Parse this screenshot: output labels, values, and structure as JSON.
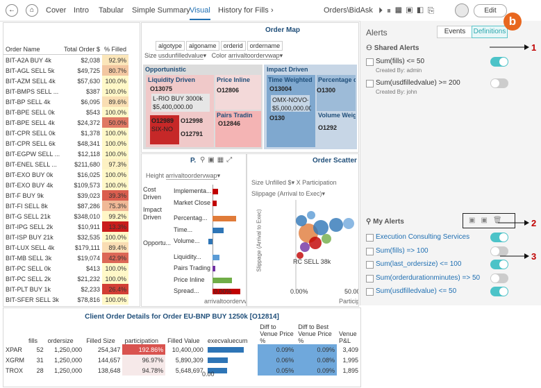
{
  "nav": {
    "tabs": [
      "Cover",
      "Intro",
      "Tabular",
      "Simple Summary",
      "Visual",
      "History for Fills"
    ],
    "active": 4,
    "path": "Orders\\BidAsk",
    "edit": "Edit",
    "badge": "b"
  },
  "order_table": {
    "headers": [
      "Order Name",
      "Total Order $",
      "% Filled"
    ],
    "rows": [
      [
        "BIT-A2A BUY 4k",
        "$2,038",
        "92.9%"
      ],
      [
        "BIT-AGL SELL 5k",
        "$49,725",
        "80.7%"
      ],
      [
        "BIT-AZM SELL 4k",
        "$57,630",
        "100.0%"
      ],
      [
        "BIT-BMPS SELL ...",
        "$387",
        "100.0%"
      ],
      [
        "BIT-BP SELL 4k",
        "$6,095",
        "89.6%"
      ],
      [
        "BIT-BPE SELL 0k",
        "$543",
        "100.0%"
      ],
      [
        "BIT-BPE SELL 4k",
        "$24,372",
        "50.0%"
      ],
      [
        "BIT-CPR SELL 0k",
        "$1,378",
        "100.0%"
      ],
      [
        "BIT-CPR SELL 6k",
        "$48,341",
        "100.0%"
      ],
      [
        "BIT-EGPW SELL ...",
        "$12,118",
        "100.0%"
      ],
      [
        "BIT-ENEL SELL ...",
        "$211,680",
        "97.3%"
      ],
      [
        "BIT-EXO BUY 0k",
        "$16,025",
        "100.0%"
      ],
      [
        "BIT-EXO BUY 4k",
        "$109,573",
        "100.0%"
      ],
      [
        "BIT-F BUY 9k",
        "$39,023",
        "39.3%"
      ],
      [
        "BIT-FI SELL 8k",
        "$87,286",
        "75.3%"
      ],
      [
        "BIT-G SELL 21k",
        "$348,010",
        "99.2%"
      ],
      [
        "BIT-IPG SELL 2k",
        "$10,911",
        "13.3%"
      ],
      [
        "BIT-ISP BUY 21k",
        "$32,535",
        "100.0%"
      ],
      [
        "BIT-LUX SELL 4k",
        "$179,111",
        "89.4%"
      ],
      [
        "BIT-MB SELL 3k",
        "$19,074",
        "42.9%"
      ],
      [
        "BIT-PC SELL 0k",
        "$413",
        "100.0%"
      ],
      [
        "BIT-PC SELL 2k",
        "$21,232",
        "100.0%"
      ],
      [
        "BIT-PLT BUY 1k",
        "$2,233",
        "26.4%"
      ],
      [
        "BIT-SFER SELL 3k",
        "$78,816",
        "100.0%"
      ]
    ]
  },
  "order_map": {
    "title": "Order Map",
    "chips": [
      "algotype",
      "algoname",
      "orderid",
      "ordername"
    ],
    "size_label": "Size",
    "size_field": "usdunfilledvalue",
    "color_label": "Color",
    "color_field": "arrivaltoordervwap",
    "labels": [
      "Opportunistic",
      "Liquidity Driven",
      "Price Inline",
      "Pairs Tradin",
      "Impact Driven",
      "Time Weighted",
      "Percentage o",
      "Volume Weig",
      "O13075",
      "L-RIO BUY 3000k",
      "$5,400,000.00",
      "O12806",
      "O12989",
      "O12998",
      "SIX-NO",
      "O12791",
      "O12846",
      "O13004",
      "OMX-NOVO-",
      "$5,000,000.00",
      "O1300",
      "O130",
      "O1292"
    ]
  },
  "bar_panel": {
    "title": "P.",
    "height_label": "Height",
    "height_field": "arrivaltoordervwap",
    "groups": [
      "Cost Driven",
      "Impact Driven",
      "Opportu..."
    ],
    "categories": [
      "Implementa...",
      "Market Close",
      "Percentag...",
      "Time...",
      "Volume...",
      "Liquidity...",
      "Pairs Trading",
      "Price Inline",
      "Spread..."
    ],
    "axis_tick": "0.00%",
    "axis_label": "arrivaltoordervw"
  },
  "scatter": {
    "title": "Order Scatter",
    "size_label": "Size",
    "size_field": "Unfilled $",
    "x_label": "X",
    "x_field": "Participation",
    "y_field": "Slippage (Arrival to Exec)",
    "y_title": "Slippage (Arrival to Exec)",
    "point_label": "RC SELL 38k",
    "xtick0": "0.00%",
    "xtick1": "50.00",
    "x_title": "Particip"
  },
  "alerts": {
    "title": "Alerts",
    "tabs": [
      "Events",
      "Definitions"
    ],
    "shared_title": "Shared Alerts",
    "shared": [
      {
        "condition": "Sum(fills) <= 50",
        "created_by": "Created By: admin",
        "enabled": true
      },
      {
        "condition": "Sum(usdfilledvalue) >= 200",
        "created_by": "Created By: john",
        "enabled": false
      }
    ],
    "my_title": "My Alerts",
    "mine": [
      {
        "condition": "Execution Consulting Services",
        "enabled": true
      },
      {
        "condition": "Sum(fills) => 100",
        "enabled": false
      },
      {
        "condition": "Sum(last_ordersize) <= 100",
        "enabled": true
      },
      {
        "condition": "Sum(orderdurationminutes) => 50",
        "enabled": false
      },
      {
        "condition": "Sum(usdfilledvalue) <= 50",
        "enabled": true
      }
    ],
    "callouts": [
      "1",
      "2",
      "3"
    ]
  },
  "detail_table": {
    "title": "Client Order Details for Order EU-BNP BUY 1250k [O12814]",
    "headers": [
      "",
      "fills",
      "ordersize",
      "Filled Size",
      "participation",
      "Filled Value",
      "execvaluecum",
      "Diff to Venue Price %",
      "Diff to Best Venue Price %",
      "Venue P&L"
    ],
    "rows": [
      [
        "XPAR",
        "52",
        "1,250,000",
        "254,347",
        "192.86%",
        "10,400,000",
        "",
        "0.09%",
        "0.09%",
        "3,409"
      ],
      [
        "XGRM",
        "31",
        "1,250,000",
        "144,657",
        "96.97%",
        "5,890,309",
        "",
        "0.06%",
        "0.08%",
        "1,995"
      ],
      [
        "TROX",
        "28",
        "1,250,000",
        "138,648",
        "94.78%",
        "5,648,697",
        "",
        "0.05%",
        "0.09%",
        "1,895"
      ]
    ],
    "axis_tick": "0.00"
  }
}
